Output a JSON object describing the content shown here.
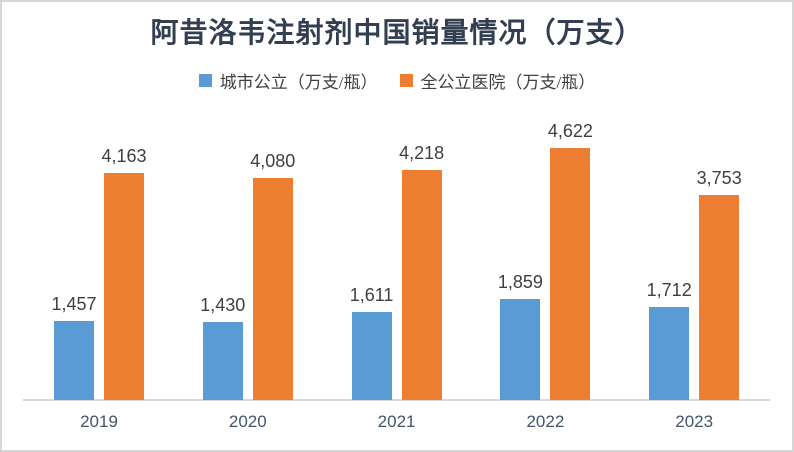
{
  "chart_data": {
    "type": "bar",
    "title": "阿昔洛韦注射剂中国销量情况（万支）",
    "categories": [
      "2019",
      "2020",
      "2021",
      "2022",
      "2023"
    ],
    "series": [
      {
        "name": "城市公立（万支/瓶）",
        "color": "#5b9bd5",
        "values": [
          1457,
          1430,
          1611,
          1859,
          1712
        ],
        "labels": [
          "1,457",
          "1,430",
          "1,611",
          "1,859",
          "1,712"
        ]
      },
      {
        "name": "全公立医院（万支/瓶）",
        "color": "#ed7d31",
        "values": [
          4163,
          4080,
          4218,
          4622,
          3753
        ],
        "labels": [
          "4,163",
          "4,080",
          "4,218",
          "4,622",
          "3,753"
        ]
      }
    ],
    "xlabel": "",
    "ylabel": "",
    "ylim": [
      0,
      5000
    ],
    "grid": false,
    "y_axis_visible": false,
    "data_labels": true,
    "legend_position": "top"
  },
  "colors": {
    "axis_line": "#d9d9d9",
    "frame_border": "#d6d6d6",
    "title_text": "#333f50",
    "value_label_text": "#404040",
    "axis_label_text": "#44546a",
    "background": "#ffffff"
  }
}
